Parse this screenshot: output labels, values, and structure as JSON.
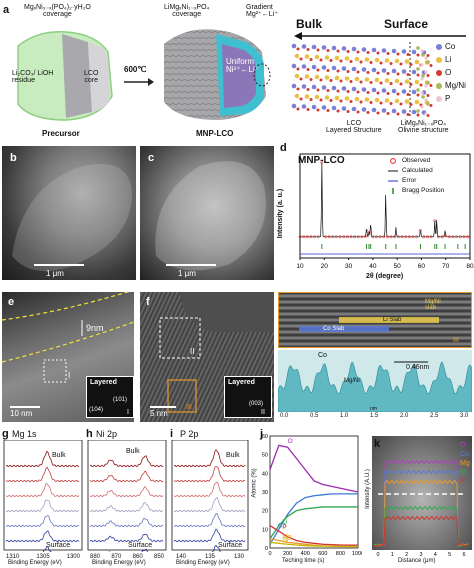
{
  "panel_a": {
    "label": "a",
    "precursor_coverage": "MgₓNi₃₋ₓ(PO₄)₂·yH₂O\ncoverage",
    "residue": "Li₂CO₃/ LiOH\nresidue",
    "core": "LCO\ncore",
    "temperature": "600℃",
    "precursor_title": "Precursor",
    "mnp_coverage": "LiMgₓNi₁₋ₓPO₄\ncoverage",
    "gradient": "Gradient\nMg²⁺←Li⁺",
    "uniform": "Uniform\nNi²⁺←Li⁺",
    "mnp_title": "MNP-LCO",
    "bulk": "Bulk",
    "surface": "Surface",
    "legend": [
      {
        "label": "Co",
        "color": "#7b7fd6"
      },
      {
        "label": "Li",
        "color": "#e8c04a"
      },
      {
        "label": "O",
        "color": "#d63b2f"
      },
      {
        "label": "Mg/Ni",
        "color": "#a8b85a"
      },
      {
        "label": "P",
        "color": "#f0c6d0"
      }
    ],
    "lco_layered": "LCO\nLayered Structure",
    "olivine": "LiMgₓNi₁₋ₓPO₄\nOlivine structure"
  },
  "panel_b": {
    "label": "b",
    "scale": "1 μm"
  },
  "panel_c": {
    "label": "c",
    "scale": "1 μm"
  },
  "panel_d": {
    "label": "d",
    "title": "MNP-LCO",
    "ylabel": "Intensity (a. u.)",
    "xlabel": "2θ (degree)",
    "xticks": [
      "10",
      "20",
      "30",
      "40",
      "50",
      "60",
      "70",
      "80"
    ],
    "legend": [
      "Observed",
      "Calculated",
      "Error",
      "Bragg Position"
    ],
    "colors": {
      "observed": "#d22",
      "calculated": "#111",
      "error": "#2233cc",
      "bragg": "#2a8a2a"
    }
  },
  "panel_e": {
    "label": "e",
    "scale": "10 nm",
    "thickness": "9nm",
    "box": "I",
    "inset_title": "Layered",
    "inset_miller1": "(104)",
    "inset_miller2": "(101)",
    "inset_id": "I"
  },
  "panel_f": {
    "label": "f",
    "scale": "5 nm",
    "box": "II",
    "box2": "III",
    "inset_title": "Layered",
    "inset_miller": "(003)",
    "inset_id": "II"
  },
  "panel_f2": {
    "mgni_slab": "Mg/Ni\nslab",
    "li_slab": "Li Slab",
    "co_slab": "Co Slab",
    "id": "III",
    "co": "Co",
    "mgni": "Mg/Ni",
    "spacing": "0.46nm",
    "xticks": [
      "0.0",
      "0.5",
      "1.0",
      "1.5",
      "2.0",
      "2.5",
      "3.0"
    ],
    "xunit": "nm"
  },
  "panel_g": {
    "label": "g",
    "element": "Mg 1s",
    "bulk": "Bulk",
    "surface": "Surface",
    "xlabel": "Binding Energy (eV)",
    "xticks": [
      "1310",
      "1305",
      "1300"
    ]
  },
  "panel_h": {
    "label": "h",
    "element": "Ni 2p",
    "bulk": "Bulk",
    "surface": "Surface",
    "xlabel": "Binding Energy (eV)",
    "xticks": [
      "880",
      "870",
      "860",
      "850"
    ]
  },
  "panel_i": {
    "label": "i",
    "element": "P 2p",
    "bulk": "Bulk",
    "surface": "Surface",
    "xlabel": "Binding Energy (eV)",
    "xticks": [
      "140",
      "135",
      "130"
    ]
  },
  "panel_j": {
    "label": "j",
    "ylabel": "Atomic (%)",
    "xlabel": "Teching time (s)",
    "yticks": [
      "0",
      "10",
      "20",
      "30",
      "40",
      "50",
      "60"
    ],
    "xticks": [
      "0",
      "200",
      "400",
      "600",
      "800",
      "1000"
    ],
    "series_labels": [
      "O",
      "Co",
      "Li",
      "P",
      "Mg",
      "Ni"
    ]
  },
  "panel_k": {
    "label": "k",
    "ylabel": "Intensity (A.U.)",
    "xlabel": "Distance (μm)",
    "xticks": [
      "0",
      "1",
      "2",
      "3",
      "4",
      "5",
      "6"
    ],
    "legend": [
      "O",
      "Co",
      "Mg",
      "Ni",
      "P"
    ]
  },
  "chart_data": [
    {
      "type": "line",
      "title": "MNP-LCO",
      "xlabel": "2θ (degree)",
      "ylabel": "Intensity (a. u.)",
      "xlim": [
        10,
        80
      ],
      "peaks_x": [
        19.0,
        37.4,
        38.4,
        39.1,
        45.3,
        49.5,
        59.6,
        65.5,
        66.3,
        69.7
      ],
      "peaks_h": [
        0.93,
        0.12,
        0.07,
        0.18,
        0.55,
        0.12,
        0.1,
        0.2,
        0.22,
        0.08
      ],
      "bragg_x": [
        19.0,
        37.4,
        38.4,
        39.1,
        45.3,
        49.5,
        59.6,
        65.5,
        66.3,
        69.7,
        75.0,
        78.0
      ]
    },
    {
      "type": "line",
      "xlabel": "Teching time (s)",
      "ylabel": "Atomic (%)",
      "xlim": [
        0,
        1000
      ],
      "ylim": [
        0,
        60
      ],
      "x": [
        0,
        100,
        200,
        300,
        400,
        500,
        600,
        700,
        800,
        900,
        1000
      ],
      "series": [
        {
          "name": "O",
          "color": "#9b2bb0",
          "values": [
            42,
            55,
            54,
            48,
            42,
            36,
            34,
            33,
            32,
            31,
            30
          ]
        },
        {
          "name": "Co",
          "color": "#3a7bd5",
          "values": [
            2,
            10,
            18,
            24,
            27,
            28,
            28.5,
            29,
            29,
            29,
            29
          ]
        },
        {
          "name": "Li",
          "color": "#2fa84f",
          "values": [
            5,
            12,
            17,
            20,
            21,
            21.5,
            22,
            22,
            22,
            22,
            22
          ]
        },
        {
          "name": "P",
          "color": "#d0342c",
          "values": [
            12,
            9,
            6,
            4,
            3,
            2.5,
            2,
            1.8,
            1.6,
            1.5,
            1.5
          ]
        },
        {
          "name": "Mg",
          "color": "#e89a2a",
          "values": [
            5,
            4,
            3,
            2.5,
            2,
            1.5,
            1.2,
            1,
            0.9,
            0.8,
            0.8
          ]
        },
        {
          "name": "Ni",
          "color": "#c9b400",
          "values": [
            3,
            2.5,
            2,
            1.6,
            1.3,
            1.1,
            1,
            0.9,
            0.8,
            0.8,
            0.8
          ]
        }
      ]
    }
  ]
}
